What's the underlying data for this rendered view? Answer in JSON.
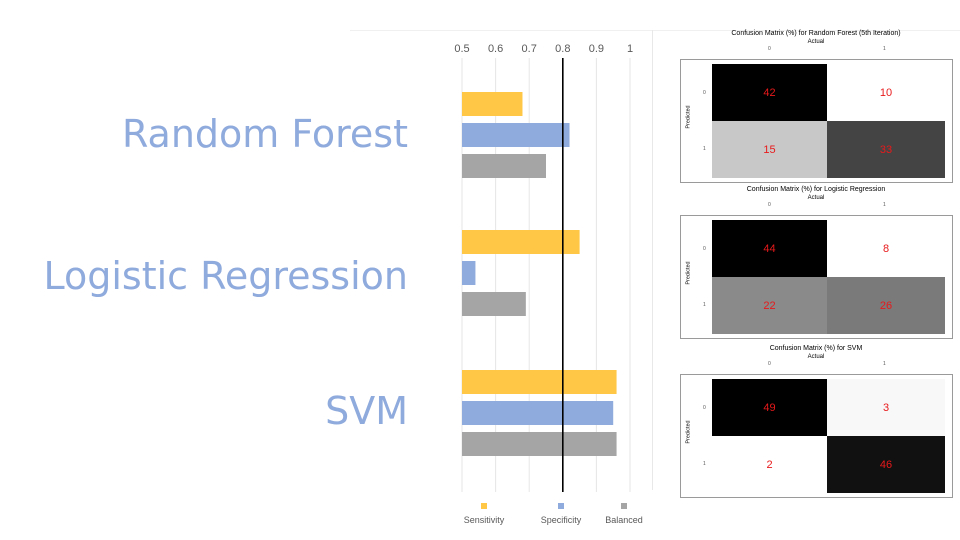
{
  "labels": {
    "random_forest": "Random Forest",
    "logistic_regression": "Logistic Regression",
    "svm": "SVM"
  },
  "chart_data": [
    {
      "type": "bar",
      "orientation": "horizontal",
      "categories": [
        "Random Forest",
        "Logistic Regression",
        "SVM"
      ],
      "series": [
        {
          "name": "Sensitivity",
          "color": "#ffc745",
          "values": [
            0.68,
            0.85,
            0.96
          ]
        },
        {
          "name": "Specificity",
          "color": "#8faadc",
          "values": [
            0.82,
            0.54,
            0.95
          ]
        },
        {
          "name": "Balanced",
          "color": "#a5a5a5",
          "values": [
            0.75,
            0.69,
            0.96
          ]
        }
      ],
      "x_ticks": [
        "0.5",
        "0.6",
        "0.7",
        "0.8",
        "0.9",
        "1"
      ],
      "xlim": [
        0.5,
        1.0
      ],
      "reference_line": 0.8,
      "legend_position": "bottom",
      "gridlines": true
    },
    {
      "type": "heatmap",
      "title": "Confusion Matrix (%) for Random Forest (5th Iteration)",
      "xlabel": "Actual",
      "ylabel": "Predicted",
      "x_ticks": [
        "0",
        "1"
      ],
      "y_ticks": [
        "0",
        "1"
      ],
      "cells": [
        [
          42,
          10
        ],
        [
          15,
          33
        ]
      ],
      "cell_colors": [
        [
          "#000000",
          "#ffffff"
        ],
        [
          "#c8c8c8",
          "#444444"
        ]
      ]
    },
    {
      "type": "heatmap",
      "title": "Confusion Matrix (%) for Logistic Regression",
      "xlabel": "Actual",
      "ylabel": "Predicted",
      "x_ticks": [
        "0",
        "1"
      ],
      "y_ticks": [
        "0",
        "1"
      ],
      "cells": [
        [
          44,
          8
        ],
        [
          22,
          26
        ]
      ],
      "cell_colors": [
        [
          "#000000",
          "#ffffff"
        ],
        [
          "#8a8a8a",
          "#7a7a7a"
        ]
      ]
    },
    {
      "type": "heatmap",
      "title": "Confusion Matrix (%) for SVM",
      "xlabel": "Actual",
      "ylabel": "Predicted",
      "x_ticks": [
        "0",
        "1"
      ],
      "y_ticks": [
        "0",
        "1"
      ],
      "cells": [
        [
          49,
          3
        ],
        [
          2,
          46
        ]
      ],
      "cell_colors": [
        [
          "#000000",
          "#f8f8f8"
        ],
        [
          "#ffffff",
          "#111111"
        ]
      ]
    }
  ]
}
